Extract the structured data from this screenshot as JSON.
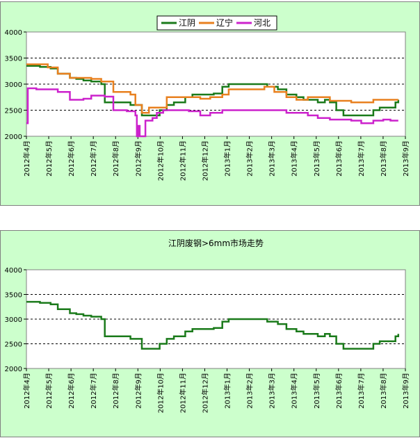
{
  "chart_data": [
    {
      "type": "line",
      "title": "",
      "xlabel": "",
      "ylabel": "",
      "ylim": [
        2000,
        4000
      ],
      "yticks": [
        "4000",
        "3500",
        "3000",
        "2500",
        "2000"
      ],
      "x_range": [
        "2012-04-01",
        "2013-09-15"
      ],
      "xticks": [
        "2012年4月",
        "2012年5月",
        "2012年6月",
        "2012年7月",
        "2012年8月",
        "2012年9月",
        "2012年10月",
        "2012年11月",
        "2012年12月",
        "2013年1月",
        "2013年2月",
        "2013年3月",
        "2013年4月",
        "2013年5月",
        "2013年6月",
        "2013年7月",
        "2013年8月",
        "2013年9月"
      ],
      "grid": "dashed horizontal",
      "legend": "top-center",
      "series": [
        {
          "name": "江阴",
          "color": "#1a7a1a",
          "x": [
            "2012-04-01",
            "2012-04-20",
            "2012-05-05",
            "2012-05-15",
            "2012-06-01",
            "2012-06-10",
            "2012-06-20",
            "2012-07-01",
            "2012-07-10",
            "2012-07-15",
            "2012-07-20",
            "2012-08-15",
            "2012-08-25",
            "2012-09-01",
            "2012-09-10",
            "2012-09-15",
            "2012-09-25",
            "2012-10-05",
            "2012-10-10",
            "2012-10-15",
            "2012-10-25",
            "2012-11-10",
            "2012-11-20",
            "2012-12-10",
            "2012-12-20",
            "2013-01-01",
            "2013-01-10",
            "2013-01-20",
            "2013-02-01",
            "2013-02-15",
            "2013-02-25",
            "2013-03-05",
            "2013-03-12",
            "2013-03-20",
            "2013-04-01",
            "2013-04-15",
            "2013-04-25",
            "2013-05-01",
            "2013-05-15",
            "2013-05-25",
            "2013-06-01",
            "2013-06-10",
            "2013-06-20",
            "2013-07-10",
            "2013-07-25",
            "2013-08-01",
            "2013-08-10",
            "2013-08-20",
            "2013-09-01",
            "2013-09-05"
          ],
          "values": [
            3350,
            3330,
            3300,
            3200,
            3120,
            3100,
            3070,
            3050,
            3050,
            3000,
            2650,
            2650,
            2600,
            2600,
            2400,
            2400,
            2400,
            2500,
            2500,
            2600,
            2650,
            2750,
            2800,
            2800,
            2820,
            2950,
            3000,
            3000,
            3000,
            3000,
            3000,
            2950,
            2950,
            2900,
            2800,
            2750,
            2700,
            2700,
            2650,
            2700,
            2650,
            2500,
            2400,
            2400,
            2400,
            2500,
            2550,
            2550,
            2650,
            2700
          ]
        },
        {
          "name": "辽宁",
          "color": "#e8801f",
          "x": [
            "2012-04-01",
            "2012-05-01",
            "2012-05-15",
            "2012-06-01",
            "2012-07-01",
            "2012-07-15",
            "2012-08-01",
            "2012-08-25",
            "2012-09-01",
            "2012-09-10",
            "2012-09-20",
            "2012-10-05",
            "2012-10-15",
            "2012-11-15",
            "2012-12-01",
            "2012-12-15",
            "2013-01-01",
            "2013-01-10",
            "2013-02-01",
            "2013-03-01",
            "2013-03-15",
            "2013-04-01",
            "2013-04-15",
            "2013-05-01",
            "2013-05-20",
            "2013-06-01",
            "2013-07-01",
            "2013-07-20",
            "2013-08-01",
            "2013-08-20",
            "2013-09-05"
          ],
          "values": [
            3380,
            3320,
            3200,
            3120,
            3100,
            3050,
            2850,
            2800,
            2600,
            2450,
            2550,
            2550,
            2750,
            2750,
            2720,
            2750,
            2800,
            2900,
            2900,
            2950,
            2850,
            2750,
            2700,
            2750,
            2750,
            2680,
            2650,
            2650,
            2700,
            2700,
            2700
          ]
        },
        {
          "name": "河北",
          "color": "#cc22cc",
          "x": [
            "2012-04-01",
            "2012-04-03",
            "2012-04-15",
            "2012-05-15",
            "2012-06-01",
            "2012-06-20",
            "2012-07-01",
            "2012-07-20",
            "2012-08-01",
            "2012-08-20",
            "2012-09-01",
            "2012-09-03",
            "2012-09-05",
            "2012-09-07",
            "2012-09-15",
            "2012-09-25",
            "2012-10-01",
            "2012-10-10",
            "2012-10-20",
            "2012-11-15",
            "2012-12-01",
            "2012-12-15",
            "2013-01-01",
            "2013-02-01",
            "2013-03-01",
            "2013-04-01",
            "2013-04-15",
            "2013-05-01",
            "2013-05-15",
            "2013-06-01",
            "2013-06-15",
            "2013-07-01",
            "2013-07-15",
            "2013-08-01",
            "2013-08-15",
            "2013-08-25",
            "2013-09-05"
          ],
          "values": [
            2250,
            2920,
            2900,
            2850,
            2700,
            2720,
            2780,
            2760,
            2500,
            2480,
            2400,
            2000,
            2200,
            2000,
            2300,
            2350,
            2450,
            2500,
            2500,
            2480,
            2400,
            2450,
            2500,
            2500,
            2500,
            2450,
            2450,
            2400,
            2350,
            2320,
            2320,
            2300,
            2250,
            2300,
            2320,
            2300,
            2300
          ]
        }
      ]
    },
    {
      "type": "line",
      "title": "江阴废钢>6mm市场走势",
      "xlabel": "",
      "ylabel": "",
      "ylim": [
        2000,
        4000
      ],
      "yticks": [
        "4000",
        "3500",
        "3000",
        "2500",
        "2000"
      ],
      "x_range": [
        "2012-04-01",
        "2013-09-15"
      ],
      "xticks": [
        "2012年4月",
        "2012年5月",
        "2012年6月",
        "2012年7月",
        "2012年8月",
        "2012年9月",
        "2012年10月",
        "2012年11月",
        "2012年12月",
        "2013年1月",
        "2013年2月",
        "2013年3月",
        "2013年4月",
        "2013年5月",
        "2013年6月",
        "2013年7月",
        "2013年8月",
        "2013年9月"
      ],
      "grid": "dashed horizontal",
      "legend": "none",
      "series": [
        {
          "color": "#1a7a1a",
          "x": [
            "2012-04-01",
            "2012-04-20",
            "2012-05-05",
            "2012-05-15",
            "2012-06-01",
            "2012-06-10",
            "2012-06-20",
            "2012-07-01",
            "2012-07-10",
            "2012-07-15",
            "2012-07-20",
            "2012-08-15",
            "2012-08-25",
            "2012-09-01",
            "2012-09-10",
            "2012-09-15",
            "2012-09-25",
            "2012-10-05",
            "2012-10-10",
            "2012-10-15",
            "2012-10-25",
            "2012-11-10",
            "2012-11-20",
            "2012-12-10",
            "2012-12-20",
            "2013-01-01",
            "2013-01-10",
            "2013-01-20",
            "2013-02-01",
            "2013-02-15",
            "2013-02-25",
            "2013-03-05",
            "2013-03-12",
            "2013-03-20",
            "2013-04-01",
            "2013-04-15",
            "2013-04-25",
            "2013-05-01",
            "2013-05-15",
            "2013-05-25",
            "2013-06-01",
            "2013-06-10",
            "2013-06-20",
            "2013-07-10",
            "2013-07-25",
            "2013-08-01",
            "2013-08-10",
            "2013-08-20",
            "2013-09-01",
            "2013-09-05"
          ],
          "values": [
            3350,
            3330,
            3300,
            3200,
            3120,
            3100,
            3070,
            3050,
            3050,
            3000,
            2650,
            2650,
            2600,
            2600,
            2400,
            2400,
            2400,
            2500,
            2500,
            2600,
            2650,
            2750,
            2800,
            2800,
            2820,
            2950,
            3000,
            3000,
            3000,
            3000,
            3000,
            2950,
            2950,
            2900,
            2800,
            2750,
            2700,
            2700,
            2650,
            2700,
            2650,
            2500,
            2400,
            2400,
            2400,
            2500,
            2550,
            2550,
            2650,
            2700
          ]
        }
      ]
    }
  ]
}
